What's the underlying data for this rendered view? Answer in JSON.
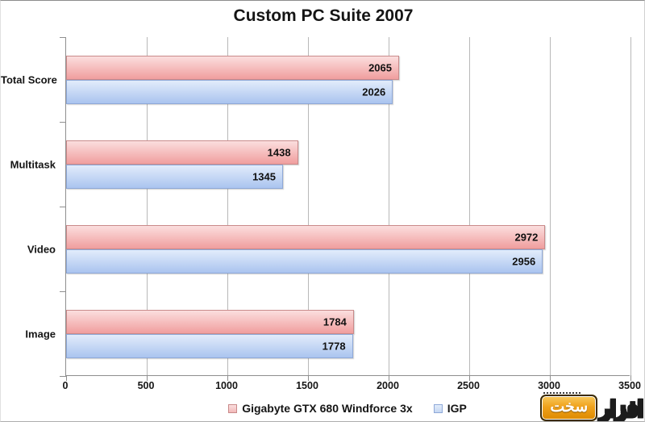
{
  "chart_data": {
    "type": "bar",
    "orientation": "horizontal",
    "title": "Custom PC Suite 2007",
    "categories": [
      "Total Score",
      "Multitask",
      "Video",
      "Image"
    ],
    "series": [
      {
        "name": "Gigabyte GTX 680 Windforce 3x",
        "values": [
          2065,
          1438,
          2972,
          1784
        ],
        "colors": {
          "top": "#fbdede",
          "bottom": "#f09e9e",
          "border": "#c98a8a",
          "swatch": "#f2b9b9"
        }
      },
      {
        "name": "IGP",
        "values": [
          2026,
          1345,
          2956,
          1778
        ],
        "colors": {
          "top": "#e2ecfb",
          "bottom": "#aac4ef",
          "border": "#8fa9d8",
          "swatch": "#c5d7f2"
        }
      }
    ],
    "xlabel": "",
    "ylabel": "",
    "xlim": [
      0,
      3500
    ],
    "x_ticks": [
      0,
      500,
      1000,
      1500,
      2000,
      2500,
      3000,
      3500
    ],
    "grid": true,
    "legend_position": "bottom",
    "data_labels": "inside-end"
  },
  "watermark": {
    "brand_word_badge": "سخت",
    "brand_word_outline": "افزار"
  },
  "colors": {
    "gridline": "#b8b8b8",
    "axis": "#8f8f8f",
    "text": "#151515",
    "background": "#ffffff",
    "watermark_badge": "#f0a21c"
  }
}
